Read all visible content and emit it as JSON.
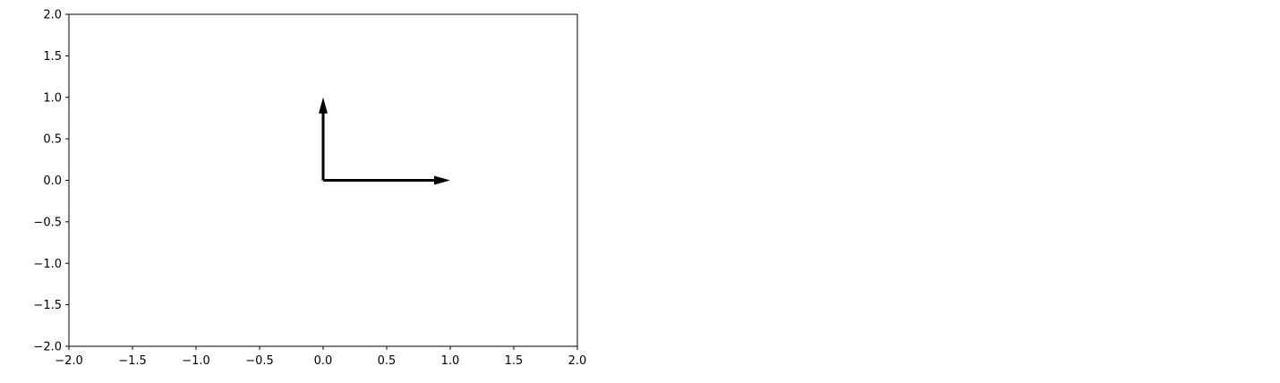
{
  "chart_data": {
    "type": "quiver",
    "title": "",
    "xlabel": "",
    "ylabel": "",
    "xlim": [
      -2.0,
      2.0
    ],
    "ylim": [
      -2.0,
      2.0
    ],
    "grid": false,
    "xticks": [
      -2.0,
      -1.5,
      -1.0,
      -0.5,
      0.0,
      0.5,
      1.0,
      1.5,
      2.0
    ],
    "yticks": [
      -2.0,
      -1.5,
      -1.0,
      -0.5,
      0.0,
      0.5,
      1.0,
      1.5,
      2.0
    ],
    "xtick_labels": [
      "−2.0",
      "−1.5",
      "−1.0",
      "−0.5",
      "0.0",
      "0.5",
      "1.0",
      "1.5",
      "2.0"
    ],
    "ytick_labels": [
      "−2.0",
      "−1.5",
      "−1.0",
      "−0.5",
      "0.0",
      "0.5",
      "1.0",
      "1.5",
      "2.0"
    ],
    "vectors": [
      {
        "x": 0.0,
        "y": 0.0,
        "dx": 1.0,
        "dy": 0.0,
        "color": "#000000"
      },
      {
        "x": 0.0,
        "y": 0.0,
        "dx": 0.0,
        "dy": 1.0,
        "color": "#000000"
      }
    ]
  }
}
